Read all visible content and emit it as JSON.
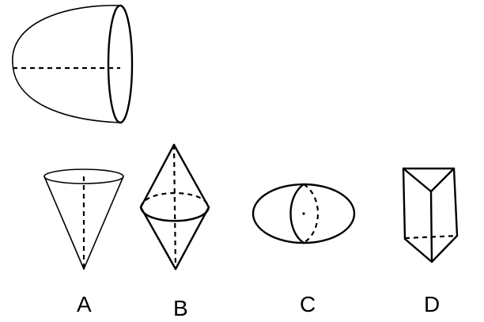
{
  "options": [
    {
      "id": "A",
      "label": "A"
    },
    {
      "id": "B",
      "label": "B"
    },
    {
      "id": "C",
      "label": "C"
    },
    {
      "id": "D",
      "label": "D"
    }
  ]
}
